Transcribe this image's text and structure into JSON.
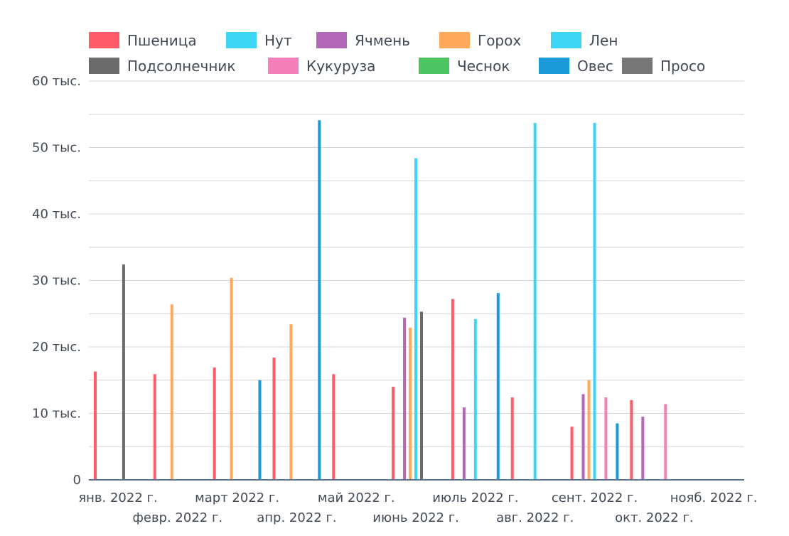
{
  "chart_data": {
    "type": "bar",
    "title": "",
    "xlabel": "",
    "ylabel": "",
    "ylim": [
      0,
      60000
    ],
    "yticks": [
      {
        "value": 0,
        "label": "0"
      },
      {
        "value": 10000,
        "label": "10 тыс."
      },
      {
        "value": 20000,
        "label": "20 тыс."
      },
      {
        "value": 30000,
        "label": "30 тыс."
      },
      {
        "value": 40000,
        "label": "40 тыс."
      },
      {
        "value": 50000,
        "label": "50 тыс."
      },
      {
        "value": 60000,
        "label": "60 тыс."
      }
    ],
    "grid": true,
    "legend_position": "top",
    "categories": [
      "янв. 2022 г.",
      "февр. 2022 г.",
      "март 2022 г.",
      "апр. 2022 г.",
      "май 2022 г.",
      "июнь 2022 г.",
      "июль 2022 г.",
      "авг. 2022 г.",
      "сент. 2022 г.",
      "окт. 2022 г.",
      "нояб. 2022 г."
    ],
    "series": [
      {
        "name": "Пшеница",
        "color": "#ff5b68",
        "values": [
          16300,
          15900,
          16900,
          18400,
          15900,
          14000,
          27200,
          12400,
          8000,
          12000,
          null
        ]
      },
      {
        "name": "Нут",
        "color": "#3dd5f5",
        "values": [
          null,
          null,
          null,
          null,
          null,
          null,
          null,
          null,
          null,
          null,
          null
        ]
      },
      {
        "name": "Ячмень",
        "color": "#b267b8",
        "values": [
          null,
          null,
          null,
          null,
          null,
          24400,
          10900,
          null,
          12900,
          9500,
          null
        ]
      },
      {
        "name": "Горох",
        "color": "#ffa85a",
        "values": [
          null,
          26400,
          30400,
          23400,
          null,
          22900,
          null,
          null,
          15000,
          null,
          null
        ]
      },
      {
        "name": "Лен",
        "color": "#3dd5f5",
        "values": [
          null,
          null,
          null,
          null,
          null,
          48400,
          24200,
          53700,
          53700,
          null,
          null
        ]
      },
      {
        "name": "Подсолнечник",
        "color": "#6b6b6b",
        "values": [
          32400,
          null,
          null,
          null,
          null,
          25300,
          null,
          null,
          null,
          null,
          null
        ]
      },
      {
        "name": "Кукуруза",
        "color": "#f47fba",
        "values": [
          null,
          null,
          null,
          null,
          null,
          null,
          null,
          null,
          12400,
          11400,
          null
        ]
      },
      {
        "name": "Чеснок",
        "color": "#4cc462",
        "values": [
          null,
          null,
          null,
          null,
          null,
          null,
          null,
          null,
          null,
          null,
          null
        ]
      },
      {
        "name": "Овес",
        "color": "#1a9ad6",
        "values": [
          null,
          null,
          15000,
          54100,
          null,
          null,
          28100,
          null,
          8500,
          null,
          null
        ]
      },
      {
        "name": "Просо",
        "color": "#777777",
        "values": [
          null,
          null,
          null,
          null,
          null,
          null,
          null,
          null,
          null,
          null,
          null
        ]
      }
    ]
  }
}
